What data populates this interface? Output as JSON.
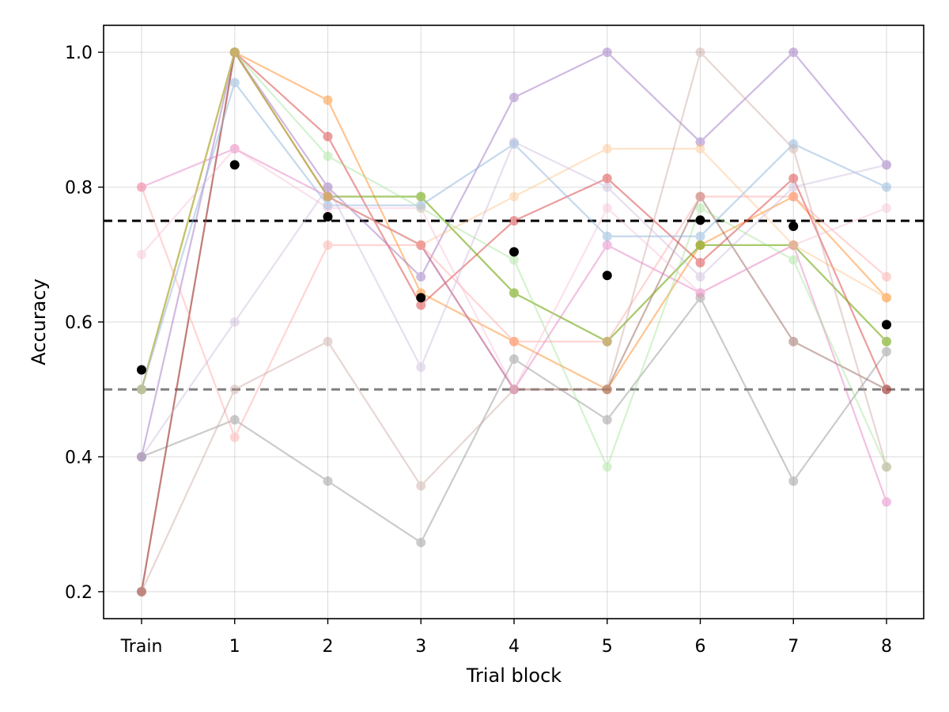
{
  "chart_data": {
    "type": "line",
    "title": "",
    "xlabel": "Trial block",
    "ylabel": "Accuracy",
    "categories": [
      "Train",
      "1",
      "2",
      "3",
      "4",
      "5",
      "6",
      "7",
      "8"
    ],
    "ylim": [
      0.16,
      1.04
    ],
    "yticks": [
      0.2,
      0.4,
      0.6,
      0.8,
      1.0
    ],
    "ytick_labels": [
      "0.2",
      "0.4",
      "0.6",
      "0.8",
      "1.0"
    ],
    "grid": true,
    "legend": "none",
    "reference_lines": [
      {
        "y": 0.75,
        "color": "#000000",
        "style": "dashed"
      },
      {
        "y": 0.5,
        "color": "#808080",
        "style": "dashed"
      }
    ],
    "mean_series": {
      "color": "#000000",
      "values": [
        0.529,
        0.833,
        0.756,
        0.636,
        0.704,
        0.669,
        0.751,
        0.742,
        0.596
      ]
    },
    "series": [
      {
        "color": "#1f77b4",
        "opacity": 0.18,
        "values": [
          0.5,
          0.955,
          0.773,
          0.773,
          0.864,
          0.727,
          0.727,
          0.864,
          0.8
        ]
      },
      {
        "color": "#ff7f0e",
        "opacity": 0.45,
        "values": [
          0.5,
          1.0,
          0.929,
          0.643,
          0.571,
          0.5,
          0.714,
          0.786,
          0.636
        ]
      },
      {
        "color": "#2ca02c",
        "opacity": 0.45,
        "values": [
          0.5,
          1.0,
          0.786,
          0.786,
          0.643,
          0.571,
          0.714,
          0.714,
          0.571
        ]
      },
      {
        "color": "#d62728",
        "opacity": 0.45,
        "values": [
          0.2,
          1.0,
          0.875,
          0.625,
          0.75,
          0.813,
          0.688,
          0.813,
          0.5
        ]
      },
      {
        "color": "#9467bd",
        "opacity": 0.45,
        "values": [
          0.4,
          1.0,
          0.8,
          0.667,
          0.933,
          1.0,
          0.867,
          1.0,
          0.833
        ]
      },
      {
        "color": "#8c564b",
        "opacity": 0.45,
        "values": [
          0.2,
          1.0,
          0.786,
          0.714,
          0.5,
          0.5,
          0.786,
          0.571,
          0.5
        ]
      },
      {
        "color": "#e377c2",
        "opacity": 0.45,
        "values": [
          0.8,
          0.857,
          0.786,
          0.714,
          0.5,
          0.714,
          0.643,
          0.714,
          0.333
        ]
      },
      {
        "color": "#7f7f7f",
        "opacity": 0.4,
        "values": [
          0.4,
          0.455,
          0.364,
          0.273,
          0.545,
          0.455,
          0.636,
          0.364,
          0.556
        ]
      },
      {
        "color": "#bcbd22",
        "opacity": 0.4,
        "values": [
          0.5,
          1.0,
          0.786,
          0.786,
          0.643,
          0.571,
          0.714,
          0.714,
          0.571
        ]
      },
      {
        "color": "#98df8a",
        "opacity": 0.4,
        "values": [
          0.5,
          1.0,
          0.846,
          0.769,
          0.692,
          0.385,
          0.769,
          0.692,
          0.385
        ]
      },
      {
        "color": "#ffbb78",
        "opacity": 0.4,
        "values": [
          0.5,
          1.0,
          0.786,
          0.714,
          0.786,
          0.857,
          0.857,
          0.714,
          0.636
        ]
      },
      {
        "color": "#ff9896",
        "opacity": 0.4,
        "values": [
          0.8,
          0.429,
          0.714,
          0.714,
          0.571,
          0.571,
          0.786,
          0.786,
          0.667
        ]
      },
      {
        "color": "#c5b0d5",
        "opacity": 0.4,
        "values": [
          0.4,
          0.6,
          0.8,
          0.533,
          0.867,
          0.8,
          0.667,
          0.8,
          0.833
        ]
      },
      {
        "color": "#c49c94",
        "opacity": 0.4,
        "values": [
          0.2,
          0.5,
          0.571,
          0.357,
          0.5,
          0.5,
          1.0,
          0.857,
          0.385
        ]
      },
      {
        "color": "#f7b6d2",
        "opacity": 0.4,
        "values": [
          0.7,
          0.857,
          0.769,
          0.769,
          0.5,
          0.769,
          0.643,
          0.714,
          0.769
        ]
      },
      {
        "color": "#aec7e8",
        "opacity": 0.4,
        "values": [
          0.5,
          0.955,
          0.773,
          0.773,
          0.864,
          0.727,
          0.727,
          0.864,
          0.8
        ]
      }
    ]
  }
}
